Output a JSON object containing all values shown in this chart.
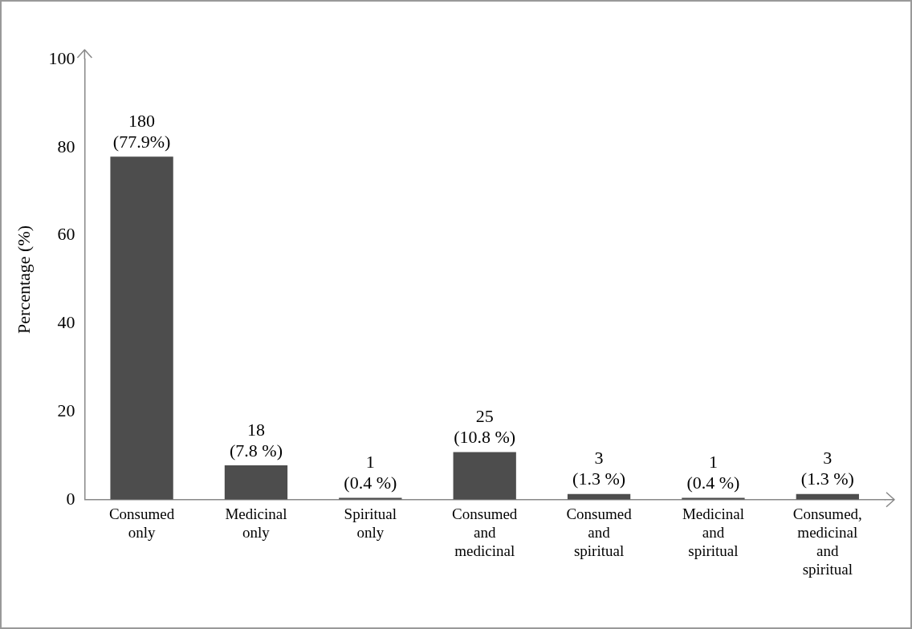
{
  "chart_data": {
    "type": "bar",
    "ylabel": "Percentage (%)",
    "categories": [
      "Consumed only",
      "Medicinal only",
      "Spiritual only",
      "Consumed and medicinal",
      "Consumed and spiritual",
      "Medicinal and spiritual",
      "Consumed, medicinal and spiritual"
    ],
    "values": [
      77.9,
      7.8,
      0.4,
      10.8,
      1.3,
      0.4,
      1.3
    ],
    "value_labels": [
      "180\n(77.9%)",
      "18\n(7.8 %)",
      "1\n(0.4 %)",
      "25\n(10.8 %)",
      "3\n(1.3 %)",
      "1\n(0.4 %)",
      "3\n(1.3 %)"
    ],
    "color": "#4d4d4d",
    "ylim": [
      0,
      100
    ],
    "yticks": [
      0,
      20,
      40,
      60,
      80,
      100
    ],
    "grid": false,
    "legend": false
  }
}
